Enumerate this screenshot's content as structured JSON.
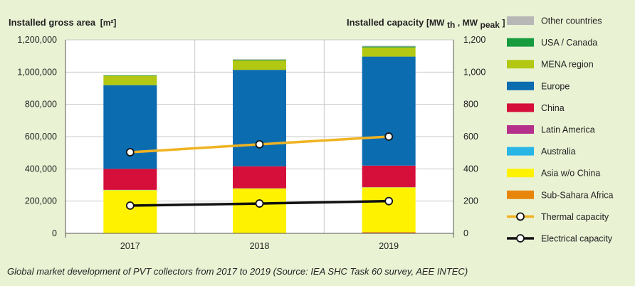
{
  "caption": "Global market development of PVT collectors from 2017 to 2019 (Source: IEA SHC Task 60 survey, AEE INTEC)",
  "chart_data": {
    "type": "bar",
    "stacked": true,
    "categories": [
      "2017",
      "2018",
      "2019"
    ],
    "left_axis": {
      "title": "Installed gross area",
      "unit": "[m²]",
      "ylim": [
        0,
        1200000
      ],
      "ticks": [
        "0",
        "200,000",
        "400,000",
        "600,000",
        "800,000",
        "1,000,000",
        "1,200,000"
      ]
    },
    "right_axis": {
      "title": "Installed capacity",
      "unit_main": "[MW",
      "unit_sub1": "th",
      "unit_sep": ", MW",
      "unit_sub2": "peak",
      "unit_end": "]",
      "ylim": [
        0,
        1200
      ],
      "ticks": [
        "0",
        "200",
        "400",
        "600",
        "800",
        "1,000",
        "1,200"
      ]
    },
    "series": [
      {
        "name": "Sub-Sahara Africa",
        "color": "#e8860c",
        "values": [
          1000,
          2000,
          8000
        ]
      },
      {
        "name": "Asia w/o China",
        "color": "#fff200",
        "values": [
          267000,
          276000,
          277000
        ]
      },
      {
        "name": "Australia",
        "color": "#29b6e6",
        "values": [
          1000,
          1000,
          1000
        ]
      },
      {
        "name": "Latin America",
        "color": "#b5308a",
        "values": [
          1000,
          1000,
          1000
        ]
      },
      {
        "name": "China",
        "color": "#d50f3a",
        "values": [
          130000,
          136000,
          133000
        ]
      },
      {
        "name": "Europe",
        "color": "#0b6cb0",
        "values": [
          519000,
          598000,
          676000
        ]
      },
      {
        "name": "MENA region",
        "color": "#b3c812",
        "values": [
          58000,
          58000,
          57000
        ]
      },
      {
        "name": "USA / Canada",
        "color": "#169b3e",
        "values": [
          3000,
          4000,
          5000
        ]
      },
      {
        "name": "Other countries",
        "color": "#b7b7b7",
        "values": [
          2000,
          4000,
          5000
        ]
      }
    ],
    "lines": [
      {
        "name": "Thermal capacity",
        "color": "#f0b323",
        "axis": "right",
        "values": [
          503,
          552,
          600
        ]
      },
      {
        "name": "Electrical capacity",
        "color": "#111111",
        "axis": "right",
        "values": [
          172,
          185,
          200
        ]
      }
    ],
    "legend": [
      {
        "name": "Other countries",
        "color": "#b7b7b7",
        "kind": "box"
      },
      {
        "name": "USA / Canada",
        "color": "#169b3e",
        "kind": "box"
      },
      {
        "name": "MENA region",
        "color": "#b3c812",
        "kind": "box"
      },
      {
        "name": "Europe",
        "color": "#0b6cb0",
        "kind": "box"
      },
      {
        "name": "China",
        "color": "#d50f3a",
        "kind": "box"
      },
      {
        "name": "Latin America",
        "color": "#b5308a",
        "kind": "box"
      },
      {
        "name": "Australia",
        "color": "#29b6e6",
        "kind": "box"
      },
      {
        "name": "Asia w/o China",
        "color": "#fff200",
        "kind": "box"
      },
      {
        "name": "Sub-Sahara Africa",
        "color": "#e8860c",
        "kind": "box"
      },
      {
        "name": "Thermal capacity",
        "color": "#f0b323",
        "kind": "line"
      },
      {
        "name": "Electrical capacity",
        "color": "#111111",
        "kind": "line"
      }
    ],
    "grid": true,
    "legend_position": "right"
  }
}
